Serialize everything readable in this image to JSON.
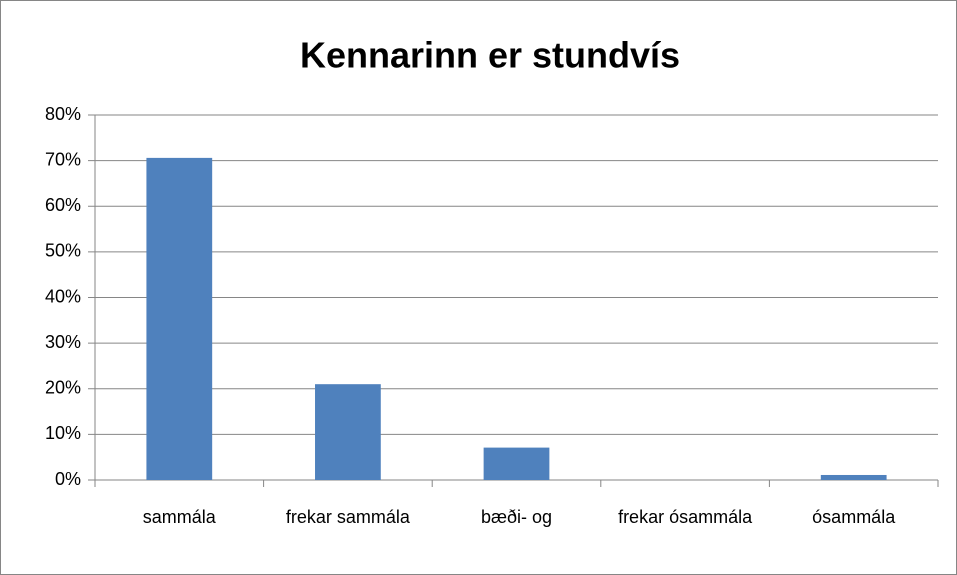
{
  "chart_data": {
    "type": "bar",
    "title": "Kennarinn er stundvís",
    "categories": [
      "sammála",
      "frekar sammála",
      "bæði- og",
      "frekar ósammála",
      "ósammála"
    ],
    "values": [
      70.6,
      21,
      7.1,
      0,
      1.1
    ],
    "color": "#4f81bd",
    "ylim": [
      0,
      80
    ],
    "yticks": [
      {
        "value": 0,
        "label": "0%"
      },
      {
        "value": 10,
        "label": "10%"
      },
      {
        "value": 20,
        "label": "20%"
      },
      {
        "value": 30,
        "label": "30%"
      },
      {
        "value": 40,
        "label": "40%"
      },
      {
        "value": 50,
        "label": "50%"
      },
      {
        "value": 60,
        "label": "60%"
      },
      {
        "value": 70,
        "label": "70%"
      },
      {
        "value": 80,
        "label": "80%"
      }
    ],
    "grid": true
  }
}
